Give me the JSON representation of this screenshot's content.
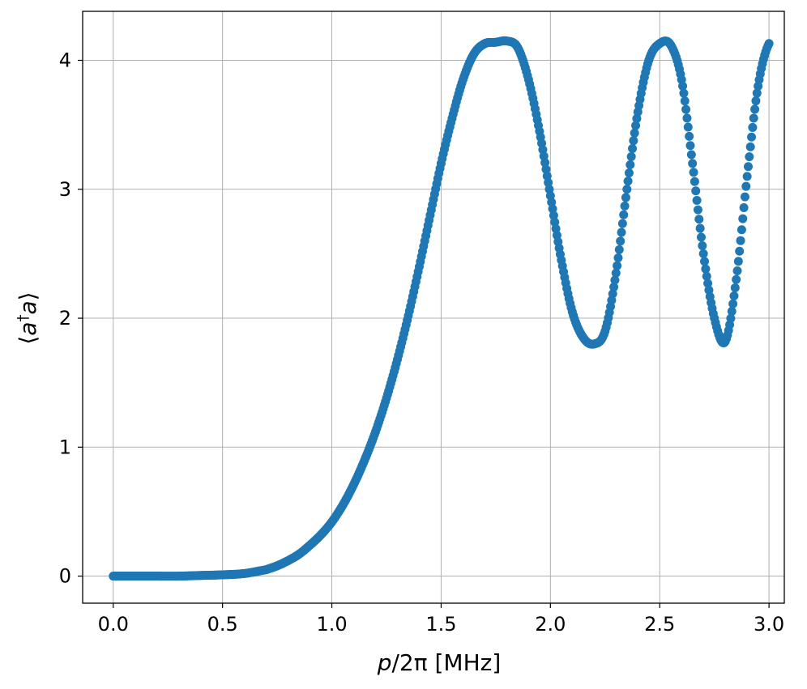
{
  "chart_data": {
    "type": "scatter",
    "title": "",
    "xlabel_prefix": "p",
    "xlabel_suffix": "/2π [MHz]",
    "ylabel_open": "⟨",
    "ylabel_a1": "a",
    "ylabel_dagger": "†",
    "ylabel_a2": "a",
    "ylabel_close": "⟩",
    "xlim": [
      -0.14,
      3.07
    ],
    "ylim": [
      -0.21,
      4.38
    ],
    "xticks": [
      0.0,
      0.5,
      1.0,
      1.5,
      2.0,
      2.5,
      3.0
    ],
    "xtick_labels": [
      "0.0",
      "0.5",
      "1.0",
      "1.5",
      "2.0",
      "2.5",
      "3.0"
    ],
    "yticks": [
      0,
      1,
      2,
      3,
      4
    ],
    "ytick_labels": [
      "0",
      "1",
      "2",
      "3",
      "4"
    ],
    "grid": true,
    "marker_color": "#1f77b4",
    "series": [
      {
        "x": [
          0.0,
          0.1,
          0.2,
          0.3,
          0.4,
          0.5,
          0.6,
          0.7,
          0.75,
          0.8,
          0.85,
          0.9,
          0.95,
          1.0,
          1.05,
          1.1,
          1.15,
          1.2,
          1.25,
          1.3,
          1.35,
          1.4,
          1.45,
          1.5,
          1.55,
          1.6,
          1.65,
          1.7,
          1.75,
          1.8,
          1.85,
          1.9,
          1.95,
          2.0,
          2.05,
          2.1,
          2.15,
          2.2,
          2.25,
          2.3,
          2.35,
          2.4,
          2.45,
          2.5,
          2.55,
          2.6,
          2.65,
          2.7,
          2.75,
          2.8,
          2.85,
          2.9,
          2.95,
          3.0
        ],
        "y": [
          0.0,
          0.0,
          0.0,
          0.0,
          0.005,
          0.01,
          0.02,
          0.05,
          0.08,
          0.12,
          0.17,
          0.24,
          0.32,
          0.42,
          0.55,
          0.71,
          0.9,
          1.12,
          1.38,
          1.68,
          2.02,
          2.4,
          2.8,
          3.2,
          3.55,
          3.85,
          4.05,
          4.13,
          4.14,
          4.15,
          4.1,
          3.85,
          3.45,
          2.95,
          2.45,
          2.05,
          1.85,
          1.8,
          1.9,
          2.35,
          3.0,
          3.6,
          4.0,
          4.13,
          4.12,
          3.85,
          3.2,
          2.5,
          2.0,
          1.82,
          2.3,
          3.1,
          3.8,
          4.13
        ]
      }
    ]
  }
}
